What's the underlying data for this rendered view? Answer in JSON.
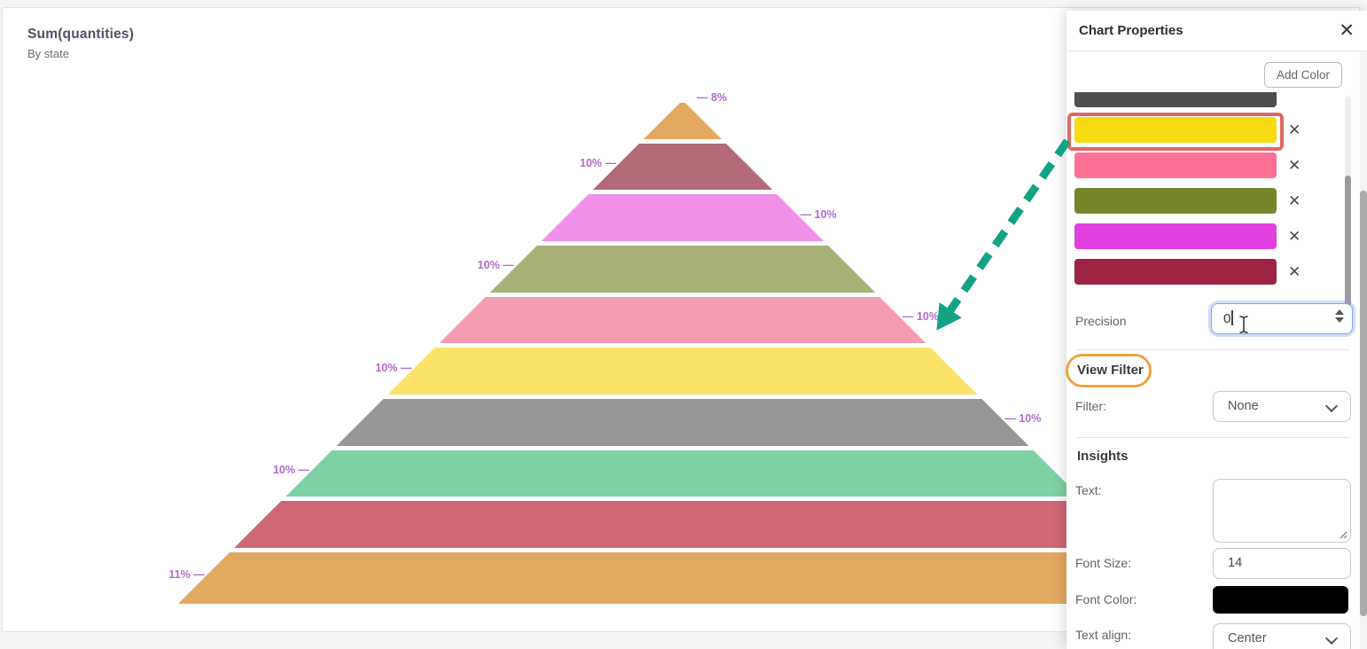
{
  "chart": {
    "title": "Sum(quantities)",
    "subtitle": "By state"
  },
  "chart_data": {
    "type": "pyramid",
    "title": "Sum(quantities)",
    "subtitle": "By state",
    "values": [
      8,
      10,
      10,
      10,
      10,
      10,
      10,
      10,
      10,
      11
    ],
    "labels": [
      "8%",
      "10%",
      "10%",
      "10%",
      "10%",
      "10%",
      "10%",
      "10%",
      "10%",
      "11%"
    ],
    "segment_colors": [
      "#e3a85f",
      "#b26b77",
      "#f291e9",
      "#a7b077",
      "#f49db2",
      "#fbe269",
      "#979797",
      "#7ed1a4",
      "#ce6874",
      "#e2a961"
    ],
    "label_color": "#b06ace",
    "label_sides_alternate_starting": "right",
    "legend": "none",
    "axes": "none"
  },
  "panel": {
    "title": "Chart Properties",
    "close_icon": "✕",
    "add_color_label": "Add Color",
    "swatch_delete_icon": "✕",
    "swatches": [
      "#4f4f4f",
      "#f8da10",
      "#fd7096",
      "#76872b",
      "#e13fe0",
      "#9e2443"
    ],
    "highlighted_swatch_index": 1,
    "precision": {
      "label": "Precision",
      "value": "0"
    },
    "view_filter": {
      "heading": "View Filter",
      "filter_label": "Filter:",
      "filter_value": "None"
    },
    "insights": {
      "heading": "Insights",
      "text_label": "Text:",
      "text_value": "",
      "font_size_label": "Font Size:",
      "font_size_value": "14",
      "font_color_label": "Font Color:",
      "font_color_value": "#000000",
      "text_align_label": "Text align:",
      "text_align_value": "Center"
    }
  },
  "annotations": {
    "arrow_color": "#12a384",
    "highlight_box_color": "#dd6a62",
    "view_filter_ring_color": "#eda43c"
  }
}
